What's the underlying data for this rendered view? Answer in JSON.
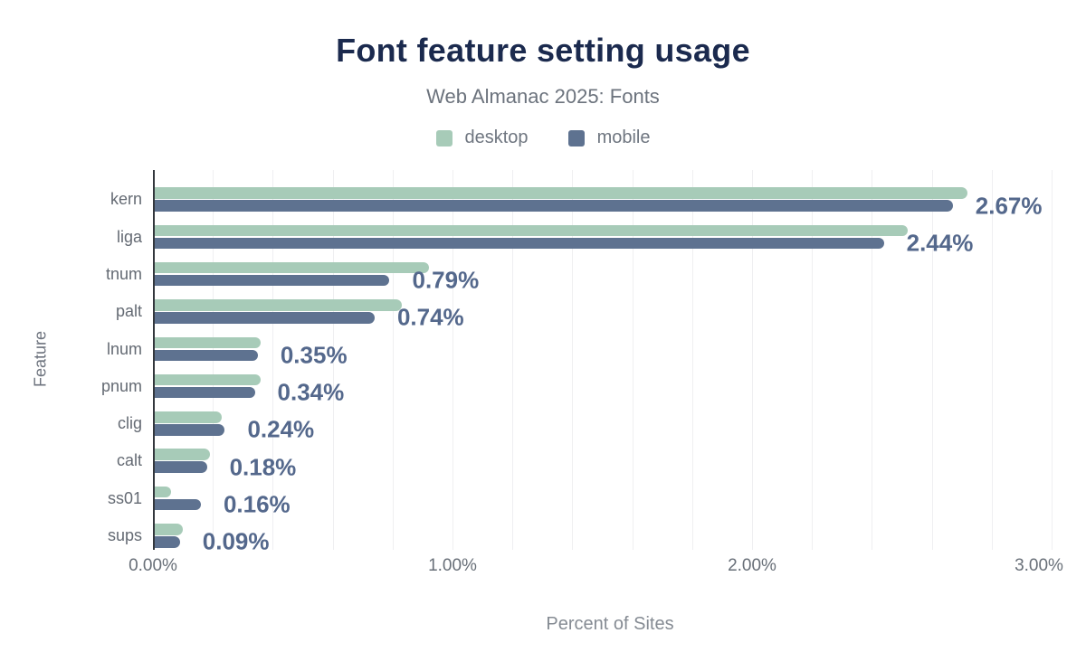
{
  "title": "Font feature setting usage",
  "subtitle": "Web Almanac 2025: Fonts",
  "legend": {
    "items": [
      {
        "label": "desktop",
        "color": "#a7cbb8"
      },
      {
        "label": "mobile",
        "color": "#5e7290"
      }
    ]
  },
  "chart_data": {
    "type": "bar",
    "orientation": "horizontal",
    "title": "Font feature setting usage",
    "subtitle": "Web Almanac 2025: Fonts",
    "xlabel": "Percent of Sites",
    "ylabel": "Feature",
    "categories": [
      "kern",
      "liga",
      "tnum",
      "palt",
      "lnum",
      "pnum",
      "clig",
      "calt",
      "ss01",
      "sups"
    ],
    "series": [
      {
        "name": "desktop",
        "color": "#a7cbb8",
        "values": [
          2.72,
          2.52,
          0.92,
          0.83,
          0.36,
          0.36,
          0.23,
          0.19,
          0.06,
          0.1
        ]
      },
      {
        "name": "mobile",
        "color": "#5e7290",
        "values": [
          2.67,
          2.44,
          0.79,
          0.74,
          0.35,
          0.34,
          0.24,
          0.18,
          0.16,
          0.09
        ]
      }
    ],
    "bar_labels": [
      "2.67%",
      "2.44%",
      "0.79%",
      "0.74%",
      "0.35%",
      "0.34%",
      "0.24%",
      "0.18%",
      "0.16%",
      "0.09%"
    ],
    "bar_labels_source": "mobile",
    "xlim": [
      0,
      3.05
    ],
    "xticks": [
      {
        "value": 0.0,
        "label": "0.00%"
      },
      {
        "value": 1.0,
        "label": "1.00%"
      },
      {
        "value": 2.0,
        "label": "2.00%"
      },
      {
        "value": 3.0,
        "label": "3.00%"
      }
    ],
    "grid": {
      "interval": 0.2,
      "axis": "x",
      "color": "#efeff1"
    },
    "legend_position": "top"
  },
  "colors": {
    "title_text": "#1b2a4e",
    "desktop_bar": "#a7cbb8",
    "mobile_bar": "#5e7290",
    "value_label_text": "#54688c",
    "axis_line": "#33373d",
    "muted_text": "#6b7280"
  }
}
